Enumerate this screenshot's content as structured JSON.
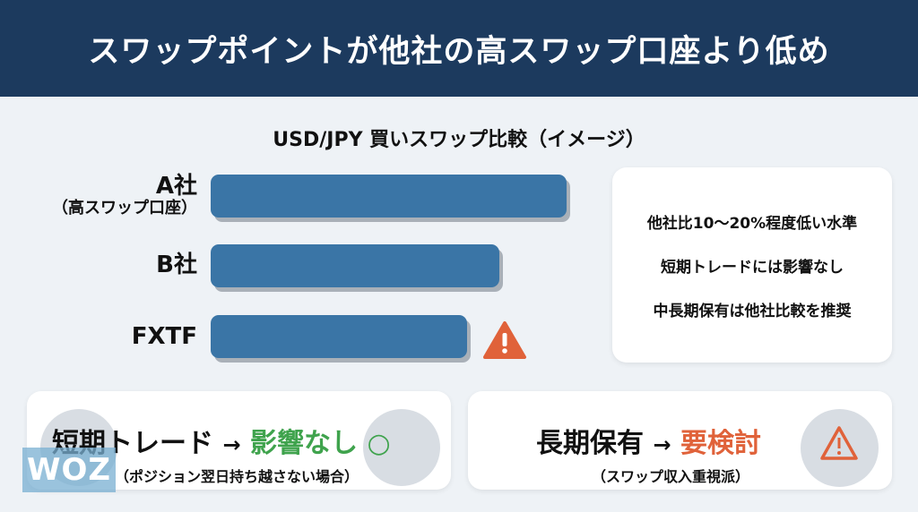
{
  "header": {
    "title": "スワップポイントが他社の高スワップ口座より低め"
  },
  "comparison": {
    "title": "USD/JPY 買いスワップ比較（イメージ）",
    "bars": [
      {
        "label": "A社",
        "sublabel": "（高スワップ口座）",
        "relative_level_percent": 100
      },
      {
        "label": "B社",
        "relative_level_percent": 81
      },
      {
        "label": "FXTF",
        "relative_level_percent": 72,
        "icon": "warning-icon"
      }
    ],
    "bar_color": "#3a75a6"
  },
  "info_card": {
    "lines": [
      "他社比10〜20%程度低い水準",
      "短期トレードには影響なし",
      "中長期保有は他社比較を推奨"
    ]
  },
  "short_term": {
    "subject": "短期トレード",
    "arrow": "→",
    "verdict": "影響なし",
    "mark": "○",
    "note": "（ポジション翌日持ち越さない場合）",
    "color": "#3fa34d"
  },
  "long_term": {
    "subject": "長期保有",
    "arrow": "→",
    "verdict": "要検討",
    "note": "（スワップ収入重視派）",
    "icon": "warning-icon",
    "color": "#e0623a"
  },
  "watermark": "WOZ"
}
